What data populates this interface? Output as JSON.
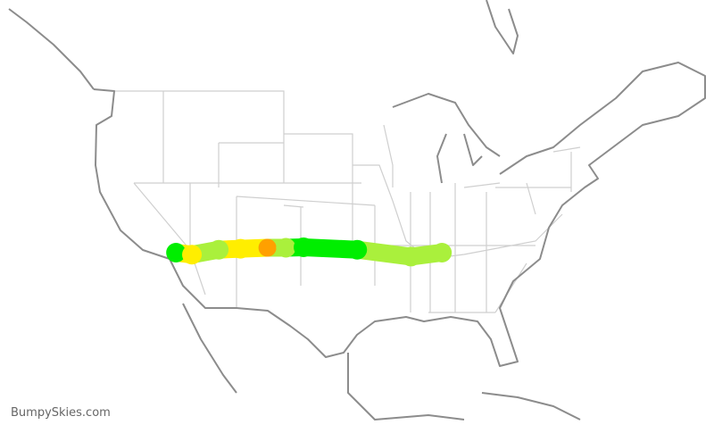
{
  "watermark": "BumpySkies.com",
  "legend_colors": {
    "smooth": "#00ee00",
    "light": "#aaf03c",
    "moderate": "#ffee00",
    "severe": "#ffa000"
  },
  "route": [
    {
      "lon": -118.5,
      "lat": 34.0,
      "level": "smooth"
    },
    {
      "lon": -116.6,
      "lat": 33.8,
      "level": "moderate"
    },
    {
      "lon": -113.4,
      "lat": 34.3,
      "level": "light"
    },
    {
      "lon": -110.8,
      "lat": 34.4,
      "level": "moderate"
    },
    {
      "lon": -107.6,
      "lat": 34.5,
      "level": "severe"
    },
    {
      "lon": -105.4,
      "lat": 34.5,
      "level": "light"
    },
    {
      "lon": -103.3,
      "lat": 34.55,
      "level": "smooth"
    },
    {
      "lon": -96.9,
      "lat": 34.3,
      "level": "smooth"
    },
    {
      "lon": -90.5,
      "lat": 33.6,
      "level": "light"
    },
    {
      "lon": -86.8,
      "lat": 34.0,
      "level": "light"
    }
  ]
}
